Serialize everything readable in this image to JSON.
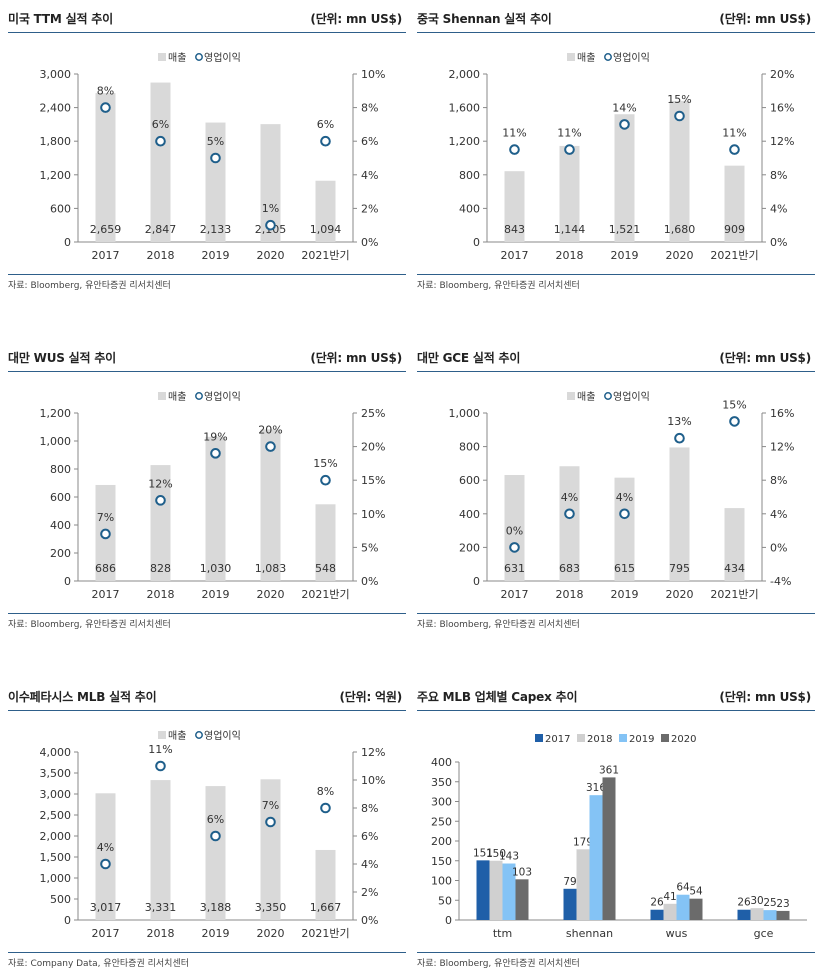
{
  "source_common": "자료: Bloomberg, 유안타증권 리서치센터",
  "source_mlb": "자료: Company Data, 유안타증권 리서치센터",
  "colors": {
    "bar": "#d9d9d9",
    "marker": "#1f5f8b",
    "axis": "#888888",
    "text": "#333333"
  },
  "legend": {
    "sales": "매출",
    "op": "영업이익"
  },
  "chart_data": [
    {
      "type": "bar+scatter",
      "title": "미국 TTM 실적 추이",
      "unit": "(단위: mn US$)",
      "categories": [
        "2017",
        "2018",
        "2019",
        "2020",
        "2021반기"
      ],
      "bar_values": [
        2659,
        2847,
        2133,
        2105,
        1094
      ],
      "bar_labels": [
        "2,659",
        "2,847",
        "2,133",
        "2,105",
        "1,094"
      ],
      "margin_values": [
        8,
        6,
        5,
        1,
        6
      ],
      "margin_labels": [
        "8%",
        "6%",
        "5%",
        "1%",
        "6%"
      ],
      "y_ticks": [
        "0",
        "600",
        "1,200",
        "1,800",
        "2,400",
        "3,000"
      ],
      "ylim": [
        0,
        3000
      ],
      "y2_ticks": [
        "0%",
        "2%",
        "4%",
        "6%",
        "8%",
        "10%"
      ],
      "y2lim": [
        0,
        10
      ]
    },
    {
      "type": "bar+scatter",
      "title": "중국 Shennan 실적 추이",
      "unit": "(단위: mn US$)",
      "categories": [
        "2017",
        "2018",
        "2019",
        "2020",
        "2021반기"
      ],
      "bar_values": [
        843,
        1144,
        1521,
        1680,
        909
      ],
      "bar_labels": [
        "843",
        "1,144",
        "1,521",
        "1,680",
        "909"
      ],
      "margin_values": [
        11,
        11,
        14,
        15,
        11
      ],
      "margin_labels": [
        "11%",
        "11%",
        "14%",
        "15%",
        "11%"
      ],
      "y_ticks": [
        "0",
        "400",
        "800",
        "1,200",
        "1,600",
        "2,000"
      ],
      "ylim": [
        0,
        2000
      ],
      "y2_ticks": [
        "0%",
        "4%",
        "8%",
        "12%",
        "16%",
        "20%"
      ],
      "y2lim": [
        0,
        20
      ]
    },
    {
      "type": "bar+scatter",
      "title": "대만 WUS 실적 추이",
      "unit": "(단위: mn US$)",
      "categories": [
        "2017",
        "2018",
        "2019",
        "2020",
        "2021반기"
      ],
      "bar_values": [
        686,
        828,
        1030,
        1083,
        548
      ],
      "bar_labels": [
        "686",
        "828",
        "1,030",
        "1,083",
        "548"
      ],
      "margin_values": [
        7,
        12,
        19,
        20,
        15
      ],
      "margin_labels": [
        "7%",
        "12%",
        "19%",
        "20%",
        "15%"
      ],
      "y_ticks": [
        "0",
        "200",
        "400",
        "600",
        "800",
        "1,000",
        "1,200"
      ],
      "ylim": [
        0,
        1200
      ],
      "y2_ticks": [
        "0%",
        "5%",
        "10%",
        "15%",
        "20%",
        "25%"
      ],
      "y2lim": [
        0,
        25
      ]
    },
    {
      "type": "bar+scatter",
      "title": "대만 GCE 실적 추이",
      "unit": "(단위: mn US$)",
      "categories": [
        "2017",
        "2018",
        "2019",
        "2020",
        "2021반기"
      ],
      "bar_values": [
        631,
        683,
        615,
        795,
        434
      ],
      "bar_labels": [
        "631",
        "683",
        "615",
        "795",
        "434"
      ],
      "margin_values": [
        0,
        4,
        4,
        13,
        15
      ],
      "margin_labels": [
        "0%",
        "4%",
        "4%",
        "13%",
        "15%"
      ],
      "y_ticks": [
        "0",
        "200",
        "400",
        "600",
        "800",
        "1,000"
      ],
      "ylim": [
        0,
        1000
      ],
      "y2_ticks": [
        "-4%",
        "0%",
        "4%",
        "8%",
        "12%",
        "16%"
      ],
      "y2lim": [
        -4,
        16
      ]
    },
    {
      "type": "bar+scatter",
      "title": "이수페타시스 MLB 실적 추이",
      "unit": "(단위: 억원)",
      "categories": [
        "2017",
        "2018",
        "2019",
        "2020",
        "2021반기"
      ],
      "bar_values": [
        3017,
        3331,
        3188,
        3350,
        1667
      ],
      "bar_labels": [
        "3,017",
        "3,331",
        "3,188",
        "3,350",
        "1,667"
      ],
      "margin_values": [
        4,
        11,
        6,
        7,
        8
      ],
      "margin_labels": [
        "4%",
        "11%",
        "6%",
        "7%",
        "8%"
      ],
      "y_ticks": [
        "0",
        "500",
        "1,000",
        "1,500",
        "2,000",
        "2,500",
        "3,000",
        "3,500",
        "4,000"
      ],
      "ylim": [
        0,
        4000
      ],
      "y2_ticks": [
        "0%",
        "2%",
        "4%",
        "6%",
        "8%",
        "10%",
        "12%"
      ],
      "y2lim": [
        0,
        12
      ]
    },
    {
      "type": "bar",
      "title": "주요 MLB 업체별 Capex 추이",
      "unit": "(단위: mn US$)",
      "categories": [
        "ttm",
        "shennan",
        "wus",
        "gce"
      ],
      "series": [
        {
          "name": "2017",
          "color": "#1f5fa8",
          "values": [
            151,
            79,
            26,
            26
          ]
        },
        {
          "name": "2018",
          "color": "#d0d0d0",
          "values": [
            150,
            179,
            41,
            30
          ]
        },
        {
          "name": "2019",
          "color": "#84c3f5",
          "values": [
            143,
            316,
            64,
            25
          ]
        },
        {
          "name": "2020",
          "color": "#6b6b6b",
          "values": [
            103,
            361,
            54,
            23
          ]
        }
      ],
      "y_ticks": [
        "0",
        "50",
        "100",
        "150",
        "200",
        "250",
        "300",
        "350",
        "400"
      ],
      "ylim": [
        0,
        400
      ]
    }
  ]
}
